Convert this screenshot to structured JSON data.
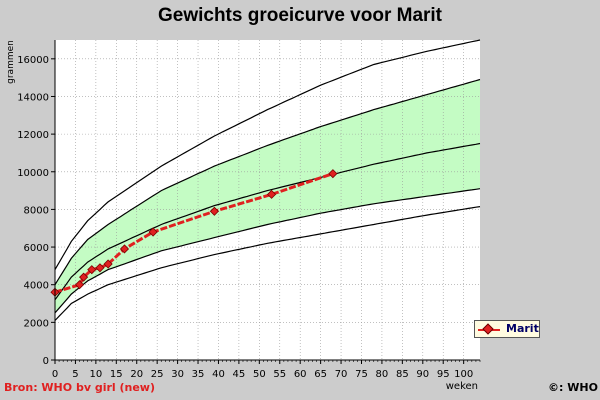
{
  "chart_data": {
    "type": "line",
    "title": "Gewichts groeicurve voor Marit",
    "xlabel": "weken",
    "ylabel": "grammen",
    "xlim": [
      0,
      104
    ],
    "ylim": [
      0,
      17000
    ],
    "x_ticks": [
      0,
      5,
      10,
      15,
      20,
      25,
      30,
      35,
      40,
      45,
      50,
      55,
      60,
      65,
      70,
      75,
      80,
      85,
      90,
      95,
      100
    ],
    "y_ticks": [
      0,
      2000,
      4000,
      6000,
      8000,
      10000,
      12000,
      14000,
      16000
    ],
    "grid": true,
    "legend_position": "right",
    "colors": {
      "band": "#c4fcc4",
      "series": "#e02020",
      "curve": "#000000",
      "plot_bg": "#ffffff"
    },
    "reference_curves": [
      {
        "x": [
          0,
          4,
          8,
          13,
          26,
          39,
          52,
          65,
          78,
          91,
          104
        ],
        "values": [
          2100,
          3000,
          3500,
          4000,
          4900,
          5600,
          6200,
          6700,
          7200,
          7700,
          8150
        ]
      },
      {
        "x": [
          0,
          4,
          8,
          13,
          26,
          39,
          52,
          65,
          78,
          91,
          104
        ],
        "values": [
          2500,
          3500,
          4200,
          4800,
          5800,
          6500,
          7200,
          7800,
          8300,
          8700,
          9100
        ]
      },
      {
        "x": [
          0,
          4,
          8,
          13,
          26,
          39,
          52,
          65,
          78,
          91,
          104
        ],
        "values": [
          3200,
          4400,
          5200,
          5900,
          7200,
          8200,
          9000,
          9700,
          10400,
          11000,
          11500
        ]
      },
      {
        "x": [
          0,
          4,
          8,
          13,
          26,
          39,
          52,
          65,
          78,
          91,
          104
        ],
        "values": [
          4000,
          5400,
          6400,
          7200,
          9000,
          10300,
          11400,
          12400,
          13300,
          14100,
          14900
        ]
      },
      {
        "x": [
          0,
          4,
          8,
          13,
          26,
          39,
          52,
          65,
          78,
          91,
          104
        ],
        "values": [
          4800,
          6300,
          7400,
          8400,
          10300,
          11900,
          13300,
          14600,
          15700,
          16400,
          17000
        ]
      }
    ],
    "band": {
      "lower_curve_index": 1,
      "upper_curve_index": 3
    },
    "series": [
      {
        "name": "Marit",
        "x": [
          0,
          6,
          7,
          9,
          11,
          13,
          17,
          24,
          39,
          53,
          68
        ],
        "values": [
          3600,
          4000,
          4400,
          4800,
          4900,
          5100,
          5900,
          6800,
          7900,
          8800,
          9900
        ]
      }
    ]
  },
  "footer": {
    "source": "Bron: WHO bv girl (new)",
    "copyright": "©: WHO"
  }
}
